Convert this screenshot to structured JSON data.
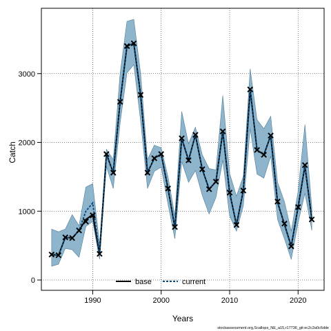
{
  "chart_data": {
    "type": "line",
    "xlabel": "Years",
    "ylabel": "Catch",
    "xlim": [
      1982.5,
      2023.8
    ],
    "ylim": [
      -150,
      3950
    ],
    "x_ticks": [
      1990,
      2000,
      2010,
      2020
    ],
    "y_ticks": [
      0,
      1000,
      2000,
      3000
    ],
    "grid": true,
    "legend": {
      "position": "bottom-center",
      "entries": [
        "base",
        "current"
      ]
    },
    "colors": {
      "band": "#8fb5cd",
      "band_edge": "#4d7c99",
      "base": "#000000",
      "current": "#0a4a7a",
      "marker": "#000000"
    },
    "x": [
      1984,
      1985,
      1986,
      1987,
      1988,
      1989,
      1990,
      1991,
      1992,
      1993,
      1994,
      1995,
      1996,
      1997,
      1998,
      1999,
      2000,
      2001,
      2002,
      2003,
      2004,
      2005,
      2006,
      2007,
      2008,
      2009,
      2010,
      2011,
      2012,
      2013,
      2014,
      2015,
      2016,
      2017,
      2018,
      2019,
      2020,
      2021,
      2022
    ],
    "series": [
      {
        "name": "base",
        "values": [
          370,
          360,
          620,
          610,
          720,
          880,
          950,
          380,
          1830,
          1560,
          2590,
          3400,
          3440,
          2690,
          1560,
          1770,
          1830,
          1330,
          760,
          2060,
          1740,
          2110,
          1610,
          1320,
          1430,
          2160,
          1270,
          800,
          1300,
          2770,
          1890,
          1820,
          2100,
          1130,
          810,
          490,
          1060,
          1660,
          890
        ]
      },
      {
        "name": "current",
        "values": [
          370,
          360,
          620,
          610,
          720,
          1000,
          1120,
          380,
          1830,
          1560,
          2590,
          3400,
          3440,
          2690,
          1560,
          1770,
          1830,
          1330,
          760,
          2060,
          1740,
          2110,
          1610,
          1320,
          1430,
          2160,
          1270,
          800,
          1300,
          2770,
          1890,
          1820,
          2100,
          1130,
          810,
          490,
          1060,
          1660,
          890
        ]
      }
    ],
    "band": {
      "upper": [
        740,
        700,
        740,
        950,
        790,
        1350,
        1400,
        520,
        1900,
        1750,
        3000,
        3760,
        3790,
        3000,
        1750,
        1960,
        1920,
        1500,
        930,
        2450,
        1980,
        2220,
        1820,
        1620,
        1600,
        2680,
        1550,
        1220,
        1510,
        3070,
        2330,
        2200,
        2380,
        1420,
        1140,
        710,
        1290,
        2260,
        1060
      ],
      "lower": [
        200,
        230,
        460,
        440,
        330,
        780,
        850,
        300,
        1650,
        1330,
        2280,
        3010,
        3130,
        2310,
        1330,
        1580,
        1640,
        1100,
        600,
        1720,
        1420,
        1590,
        1230,
        960,
        1200,
        1740,
        930,
        710,
        1080,
        2200,
        1540,
        1480,
        1800,
        880,
        600,
        300,
        830,
        1260,
        720
      ]
    },
    "markers_x": [
      1984,
      1985,
      1986,
      1987,
      1988,
      1989,
      1990,
      1991,
      1992,
      1993,
      1994,
      1995,
      1996,
      1997,
      1998,
      1999,
      2000,
      2001,
      2002,
      2003,
      2004,
      2005,
      2006,
      2007,
      2008,
      2009,
      2010,
      2011,
      2012,
      2013,
      2014,
      2015,
      2016,
      2017,
      2018,
      2019,
      2020,
      2021,
      2022
    ],
    "markers_y": [
      370,
      360,
      620,
      610,
      720,
      850,
      940,
      380,
      1830,
      1560,
      2590,
      3400,
      3440,
      2690,
      1560,
      1770,
      1830,
      1330,
      770,
      2060,
      1740,
      2110,
      1610,
      1320,
      1430,
      2160,
      1270,
      800,
      1300,
      2770,
      1890,
      1820,
      2100,
      1140,
      820,
      490,
      1060,
      1670,
      880
    ]
  },
  "footer": "stockassessment.org,Scallops_NE_a15,r17736_git:ec2c2a0c6dde"
}
